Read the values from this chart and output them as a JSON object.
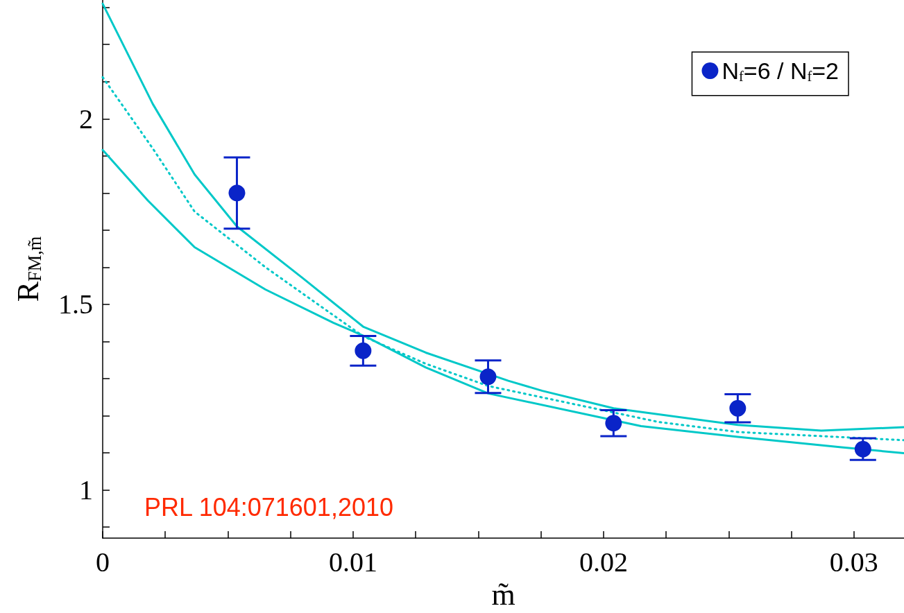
{
  "chart_data": {
    "type": "scatter",
    "xlabel": "m̃",
    "ylabel": "R$_{FM,m̃}$",
    "xlim": [
      0,
      0.032
    ],
    "ylim": [
      0.87,
      2.32
    ],
    "xticks": [
      0,
      {
        "value": 0.0025,
        "label": null
      },
      {
        "value": 0.005,
        "label": null
      },
      {
        "value": 0.0075,
        "label": null
      },
      0.01,
      {
        "value": 0.0125,
        "label": null
      },
      {
        "value": 0.015,
        "label": null
      },
      {
        "value": 0.0175,
        "label": null
      },
      0.02,
      {
        "value": 0.0225,
        "label": null
      },
      {
        "value": 0.025,
        "label": null
      },
      {
        "value": 0.0275,
        "label": null
      },
      0.03
    ],
    "yticks": [
      {
        "value": 0.9,
        "label": null
      },
      1,
      {
        "value": 1.1,
        "label": null
      },
      {
        "value": 1.2,
        "label": null
      },
      {
        "value": 1.3,
        "label": null
      },
      {
        "value": 1.4,
        "label": null
      },
      1.5,
      {
        "value": 1.6,
        "label": null
      },
      {
        "value": 1.7,
        "label": null
      },
      {
        "value": 1.8,
        "label": null
      },
      {
        "value": 1.9,
        "label": null
      },
      2,
      {
        "value": 2.1,
        "label": null
      },
      {
        "value": 2.2,
        "label": null
      },
      {
        "value": 2.3,
        "label": null
      }
    ],
    "grid": false,
    "legend": "top right",
    "annotations": [
      "PRL 104:071601,2010"
    ],
    "series": [
      {
        "name": "N$_{f}$=6 / N$_{f}$=2",
        "color": "#0a24c8",
        "marker": "circle",
        "x": [
          0.00536,
          0.0104,
          0.01539,
          0.0204,
          0.02536,
          0.03036
        ],
        "values": [
          1.8,
          1.375,
          1.305,
          1.18,
          1.22,
          1.11
        ],
        "errors": [
          0.096,
          0.04,
          0.044,
          0.035,
          0.038,
          0.029
        ]
      },
      {
        "type": "line",
        "color": "#00c8c8",
        "marker": "none",
        "line_style": "solid",
        "x": [
          0,
          0.002,
          0.00367,
          0.00536,
          0.008,
          0.0104,
          0.0129,
          0.0162,
          0.01756,
          0.0204,
          0.02536,
          0.0287,
          0.032
        ],
        "values": [
          2.31,
          2.04,
          1.85,
          1.71,
          1.57,
          1.44,
          1.37,
          1.294,
          1.267,
          1.22,
          1.175,
          1.16,
          1.169
        ]
      },
      {
        "type": "line",
        "color": "#00c8c8",
        "marker": "none",
        "line_style": "dotted",
        "x": [
          0,
          0.002,
          0.00367,
          0.0065,
          0.0104,
          0.0129,
          0.0154,
          0.0222,
          0.02536,
          0.032
        ],
        "values": [
          2.112,
          1.92,
          1.75,
          1.6,
          1.414,
          1.34,
          1.28,
          1.183,
          1.156,
          1.134
        ]
      },
      {
        "type": "line",
        "color": "#00c8c8",
        "marker": "none",
        "line_style": "solid",
        "x": [
          0,
          0.0018,
          0.00367,
          0.0065,
          0.00922,
          0.0106,
          0.0129,
          0.0154,
          0.0215,
          0.02536,
          0.0295,
          0.032
        ],
        "values": [
          1.916,
          1.78,
          1.654,
          1.54,
          1.45,
          1.41,
          1.33,
          1.26,
          1.172,
          1.143,
          1.115,
          1.099
        ]
      }
    ]
  }
}
